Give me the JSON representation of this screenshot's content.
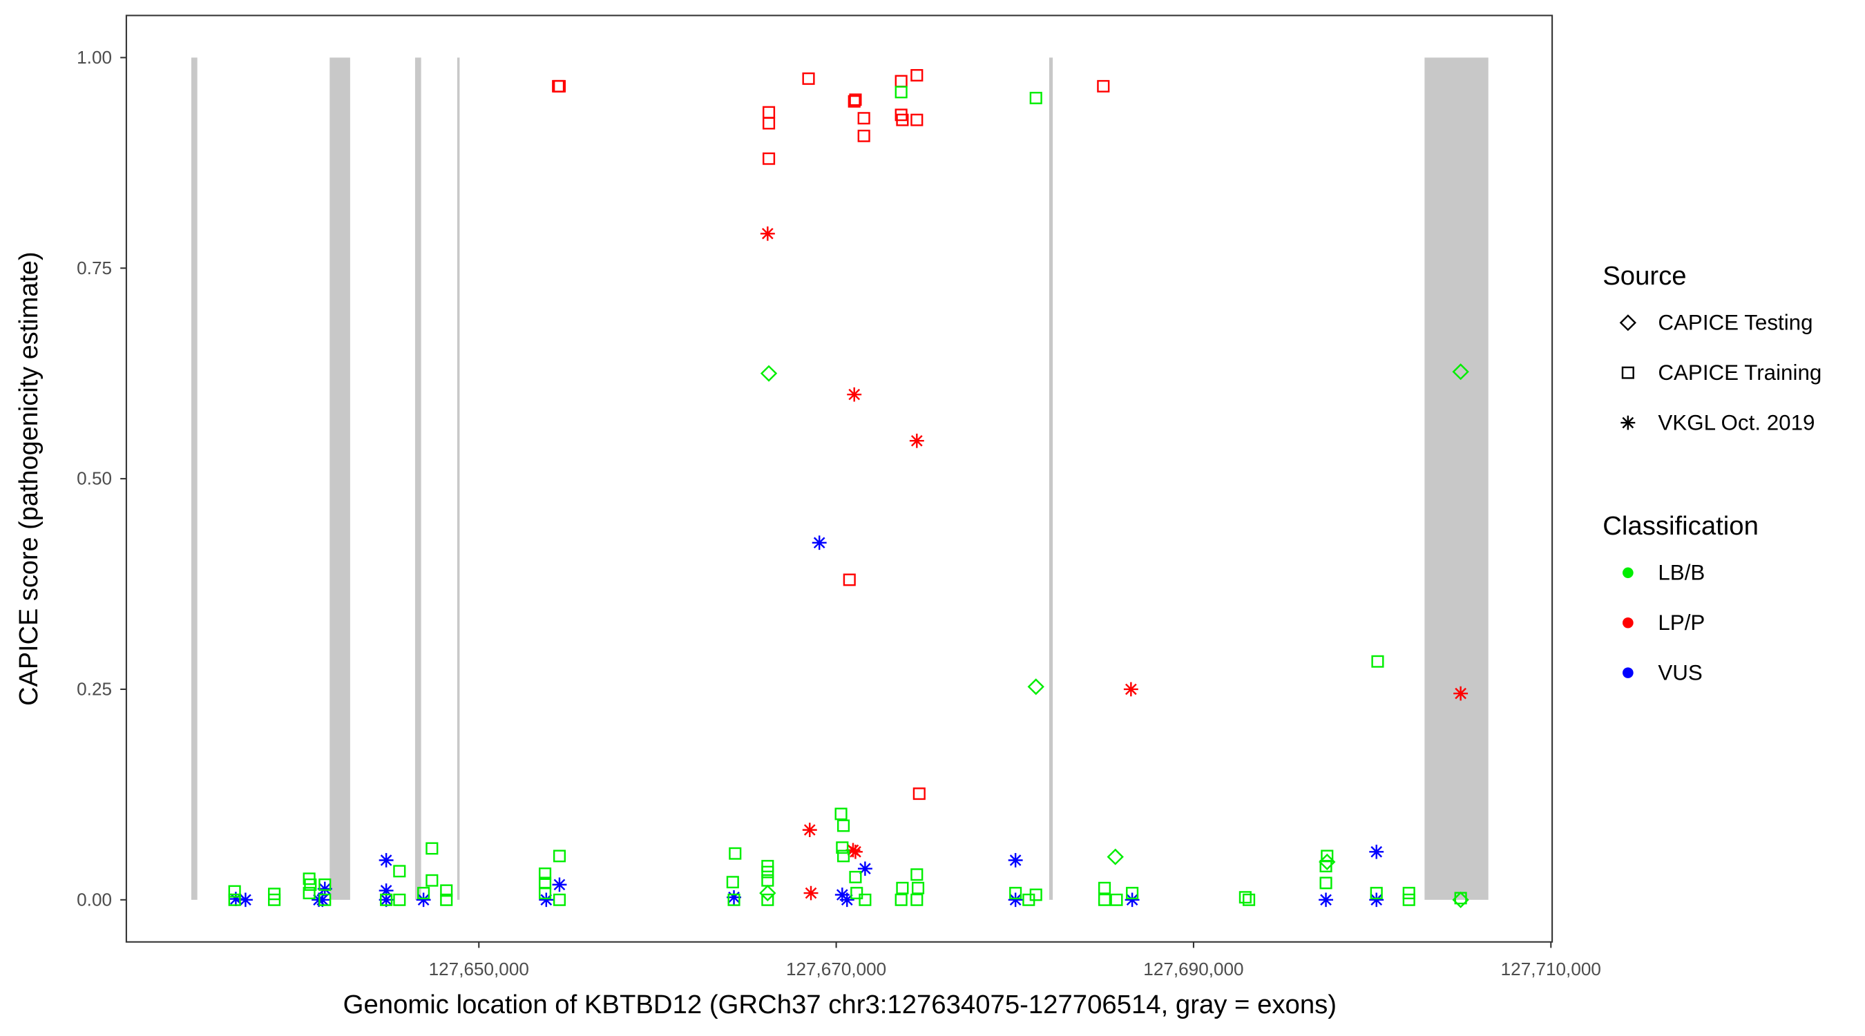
{
  "chart_data": {
    "type": "scatter",
    "xlabel": "Genomic location of KBTBD12 (GRCh37 chr3:127634075-127706514, gray = exons)",
    "ylabel": "CAPICE score (pathogenicity estimate)",
    "xlim": [
      127630270,
      127710070
    ],
    "ylim": [
      -0.05,
      1.05
    ],
    "x_ticks": [
      127650000,
      127670000,
      127690000,
      127710000
    ],
    "x_tick_labels": [
      "127,650,000",
      "127,670,000",
      "127,690,000",
      "127,710,000"
    ],
    "y_ticks": [
      0,
      0.25,
      0.5,
      0.75,
      1
    ],
    "y_tick_labels": [
      "0.00",
      "0.25",
      "0.50",
      "0.75",
      "1.00"
    ],
    "grid": false,
    "exons": [
      [
        127633906,
        127634243
      ],
      [
        127641650,
        127642795
      ],
      [
        127646431,
        127646768
      ],
      [
        127648788,
        127648923
      ],
      [
        127681919,
        127682121
      ],
      [
        127702929,
        127706498
      ]
    ],
    "legend": {
      "placement": "right",
      "source_title": "Source",
      "sources": [
        {
          "key": "Testing",
          "label": "CAPICE Testing",
          "shape": "diamond"
        },
        {
          "key": "Training",
          "label": "CAPICE Training",
          "shape": "square"
        },
        {
          "key": "VKGL",
          "label": "VKGL Oct. 2019",
          "shape": "asterisk"
        }
      ],
      "class_title": "Classification",
      "classes": [
        {
          "key": "LB/B",
          "label": "LB/B",
          "color": "#00ee00"
        },
        {
          "key": "LP/P",
          "label": "LP/P",
          "color": "#ff0000"
        },
        {
          "key": "VUS",
          "label": "VUS",
          "color": "#0000ff"
        }
      ]
    },
    "points_fields": [
      "x",
      "score",
      "classification",
      "source"
    ],
    "points": [
      [
        127654444,
        0.966,
        "LP/P",
        "Training"
      ],
      [
        127654512,
        0.966,
        "LP/P",
        "Training"
      ],
      [
        127668451,
        0.975,
        "LP/P",
        "Training"
      ],
      [
        127666229,
        0.935,
        "LP/P",
        "Training"
      ],
      [
        127666229,
        0.922,
        "LP/P",
        "Training"
      ],
      [
        127666229,
        0.88,
        "LP/P",
        "Training"
      ],
      [
        127671077,
        0.95,
        "LP/P",
        "Training"
      ],
      [
        127671010,
        0.948,
        "LP/P",
        "Training"
      ],
      [
        127671549,
        0.928,
        "LP/P",
        "Training"
      ],
      [
        127671549,
        0.907,
        "LP/P",
        "Training"
      ],
      [
        127673636,
        0.972,
        "LP/P",
        "Training"
      ],
      [
        127673704,
        0.926,
        "LP/P",
        "Training"
      ],
      [
        127673636,
        0.932,
        "LP/P",
        "Training"
      ],
      [
        127674512,
        0.979,
        "LP/P",
        "Training"
      ],
      [
        127674512,
        0.926,
        "LP/P",
        "Training"
      ],
      [
        127670741,
        0.38,
        "LP/P",
        "Training"
      ],
      [
        127674647,
        0.126,
        "LP/P",
        "Training"
      ],
      [
        127684949,
        0.966,
        "LP/P",
        "Training"
      ],
      [
        127673636,
        0.959,
        "LB/B",
        "Training"
      ],
      [
        127681178,
        0.952,
        "LB/B",
        "Training"
      ],
      [
        127700303,
        0.283,
        "LB/B",
        "Training"
      ],
      [
        127666162,
        0.791,
        "LP/P",
        "VKGL"
      ],
      [
        127671010,
        0.6,
        "LP/P",
        "VKGL"
      ],
      [
        127674512,
        0.545,
        "LP/P",
        "VKGL"
      ],
      [
        127668518,
        0.083,
        "LP/P",
        "VKGL"
      ],
      [
        127670943,
        0.059,
        "LP/P",
        "VKGL"
      ],
      [
        127671077,
        0.057,
        "LP/P",
        "VKGL"
      ],
      [
        127668586,
        0.008,
        "LP/P",
        "VKGL"
      ],
      [
        127686498,
        0.25,
        "LP/P",
        "VKGL"
      ],
      [
        127704949,
        0.245,
        "LP/P",
        "VKGL"
      ],
      [
        127669057,
        0.424,
        "VUS",
        "VKGL"
      ],
      [
        127644815,
        0.047,
        "VUS",
        "VKGL"
      ],
      [
        127680034,
        0.047,
        "VUS",
        "VKGL"
      ],
      [
        127700236,
        0.057,
        "VUS",
        "VKGL"
      ],
      [
        127671616,
        0.037,
        "VUS",
        "VKGL"
      ],
      [
        127654512,
        0.018,
        "VUS",
        "VKGL"
      ],
      [
        127641380,
        0.013,
        "VUS",
        "VKGL"
      ],
      [
        127644815,
        0.011,
        "VUS",
        "VKGL"
      ],
      [
        127636397,
        0.001,
        "VUS",
        "VKGL"
      ],
      [
        127636940,
        0,
        "VUS",
        "VKGL"
      ],
      [
        127641044,
        0,
        "VUS",
        "VKGL"
      ],
      [
        127641246,
        0,
        "VUS",
        "VKGL"
      ],
      [
        127644815,
        0,
        "VUS",
        "VKGL"
      ],
      [
        127646902,
        0,
        "VUS",
        "VKGL"
      ],
      [
        127653771,
        0,
        "VUS",
        "VKGL"
      ],
      [
        127664276,
        0.003,
        "VUS",
        "VKGL"
      ],
      [
        127670337,
        0.006,
        "VUS",
        "VKGL"
      ],
      [
        127670606,
        0,
        "VUS",
        "VKGL"
      ],
      [
        127680034,
        0,
        "VUS",
        "VKGL"
      ],
      [
        127686566,
        0,
        "VUS",
        "VKGL"
      ],
      [
        127697407,
        0,
        "VUS",
        "VKGL"
      ],
      [
        127700236,
        0,
        "VUS",
        "VKGL"
      ],
      [
        127666229,
        0.625,
        "LB/B",
        "Testing"
      ],
      [
        127704949,
        0.627,
        "LB/B",
        "Testing"
      ],
      [
        127681178,
        0.253,
        "LB/B",
        "Testing"
      ],
      [
        127685623,
        0.051,
        "LB/B",
        "Testing"
      ],
      [
        127697474,
        0.045,
        "LB/B",
        "Testing"
      ],
      [
        127666162,
        0.008,
        "LB/B",
        "Testing"
      ],
      [
        127704949,
        0,
        "LB/B",
        "Testing"
      ],
      [
        127636330,
        0.01,
        "LB/B",
        "Training"
      ],
      [
        127636330,
        0,
        "LB/B",
        "Training"
      ],
      [
        127638550,
        0.007,
        "LB/B",
        "Training"
      ],
      [
        127638550,
        0,
        "LB/B",
        "Training"
      ],
      [
        127640505,
        0.025,
        "LB/B",
        "Training"
      ],
      [
        127640570,
        0.018,
        "LB/B",
        "Training"
      ],
      [
        127640505,
        0.008,
        "LB/B",
        "Training"
      ],
      [
        127641380,
        0.018,
        "LB/B",
        "Training"
      ],
      [
        127641380,
        0,
        "LB/B",
        "Training"
      ],
      [
        127645556,
        0.034,
        "LB/B",
        "Training"
      ],
      [
        127645556,
        0,
        "LB/B",
        "Training"
      ],
      [
        127644815,
        0,
        "LB/B",
        "Training"
      ],
      [
        127647374,
        0.061,
        "LB/B",
        "Training"
      ],
      [
        127647374,
        0.023,
        "LB/B",
        "Training"
      ],
      [
        127646902,
        0.008,
        "LB/B",
        "Training"
      ],
      [
        127648182,
        0.011,
        "LB/B",
        "Training"
      ],
      [
        127648182,
        0,
        "LB/B",
        "Training"
      ],
      [
        127653704,
        0.031,
        "LB/B",
        "Training"
      ],
      [
        127653704,
        0.02,
        "LB/B",
        "Training"
      ],
      [
        127653704,
        0.008,
        "LB/B",
        "Training"
      ],
      [
        127654512,
        0.052,
        "LB/B",
        "Training"
      ],
      [
        127654512,
        0,
        "LB/B",
        "Training"
      ],
      [
        127664343,
        0.055,
        "LB/B",
        "Training"
      ],
      [
        127664209,
        0.021,
        "LB/B",
        "Training"
      ],
      [
        127664276,
        0,
        "LB/B",
        "Training"
      ],
      [
        127666162,
        0.04,
        "LB/B",
        "Training"
      ],
      [
        127666162,
        0.033,
        "LB/B",
        "Training"
      ],
      [
        127666162,
        0.023,
        "LB/B",
        "Training"
      ],
      [
        127666162,
        0,
        "LB/B",
        "Training"
      ],
      [
        127670269,
        0.102,
        "LB/B",
        "Training"
      ],
      [
        127670404,
        0.088,
        "LB/B",
        "Training"
      ],
      [
        127670337,
        0.062,
        "LB/B",
        "Training"
      ],
      [
        127670404,
        0.052,
        "LB/B",
        "Training"
      ],
      [
        127671077,
        0.027,
        "LB/B",
        "Training"
      ],
      [
        127671145,
        0.008,
        "LB/B",
        "Training"
      ],
      [
        127671616,
        0,
        "LB/B",
        "Training"
      ],
      [
        127673704,
        0.014,
        "LB/B",
        "Training"
      ],
      [
        127673636,
        0,
        "LB/B",
        "Training"
      ],
      [
        127674512,
        0.03,
        "LB/B",
        "Training"
      ],
      [
        127674579,
        0.014,
        "LB/B",
        "Training"
      ],
      [
        127674512,
        0,
        "LB/B",
        "Training"
      ],
      [
        127680034,
        0.008,
        "LB/B",
        "Training"
      ],
      [
        127680774,
        0,
        "LB/B",
        "Training"
      ],
      [
        127681178,
        0.006,
        "LB/B",
        "Training"
      ],
      [
        127685017,
        0.014,
        "LB/B",
        "Training"
      ],
      [
        127685017,
        0,
        "LB/B",
        "Training"
      ],
      [
        127685690,
        0,
        "LB/B",
        "Training"
      ],
      [
        127686566,
        0.008,
        "LB/B",
        "Training"
      ],
      [
        127692896,
        0.003,
        "LB/B",
        "Training"
      ],
      [
        127693098,
        0,
        "LB/B",
        "Training"
      ],
      [
        127697407,
        0.02,
        "LB/B",
        "Training"
      ],
      [
        127697474,
        0.052,
        "LB/B",
        "Training"
      ],
      [
        127697407,
        0.04,
        "LB/B",
        "Training"
      ],
      [
        127702054,
        0.008,
        "LB/B",
        "Training"
      ],
      [
        127702054,
        0,
        "LB/B",
        "Training"
      ],
      [
        127704949,
        0.002,
        "LB/B",
        "Training"
      ],
      [
        127700236,
        0.008,
        "LB/B",
        "Training"
      ]
    ]
  }
}
